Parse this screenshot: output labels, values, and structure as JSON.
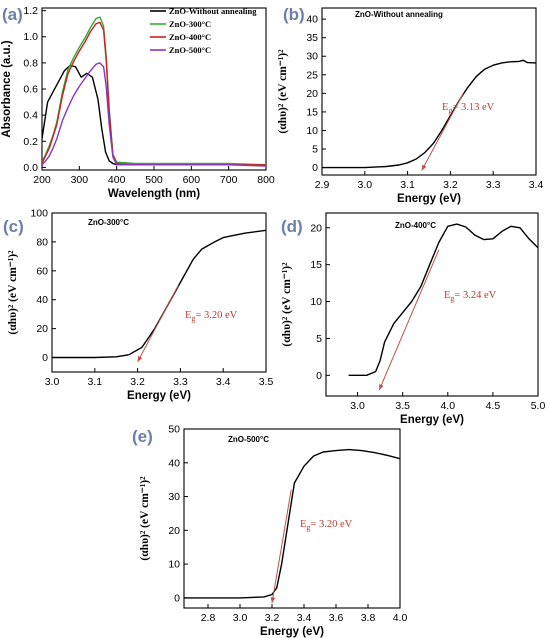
{
  "chart_data": [
    {
      "id": "a",
      "panel_label": "(a)",
      "type": "line",
      "title": "",
      "xlabel": "Wavelength (nm)",
      "ylabel": "Absorbance (a.u.)",
      "xlim": [
        200,
        800
      ],
      "ylim": [
        -0.02,
        1.22
      ],
      "xticks": [
        200,
        300,
        400,
        500,
        600,
        700,
        800
      ],
      "yticks": [
        0.0,
        0.2,
        0.4,
        0.6,
        0.8,
        1.0,
        1.2
      ],
      "legend": "top-right",
      "series": [
        {
          "name": "ZnO-Without annealing",
          "color": "#000000",
          "x": [
            200,
            215,
            230,
            245,
            260,
            275,
            290,
            305,
            320,
            335,
            350,
            360,
            370,
            380,
            390,
            400,
            450,
            500,
            600,
            700,
            800
          ],
          "y": [
            0.22,
            0.5,
            0.58,
            0.66,
            0.74,
            0.78,
            0.77,
            0.69,
            0.72,
            0.69,
            0.52,
            0.3,
            0.12,
            0.05,
            0.03,
            0.02,
            0.02,
            0.02,
            0.02,
            0.02,
            0.02
          ]
        },
        {
          "name": "ZnO-300°C",
          "color": "#33aa33",
          "x": [
            200,
            210,
            220,
            230,
            240,
            255,
            270,
            285,
            300,
            315,
            330,
            345,
            355,
            365,
            372,
            380,
            390,
            400,
            450,
            500,
            600,
            700,
            800
          ],
          "y": [
            0.04,
            0.1,
            0.17,
            0.25,
            0.35,
            0.58,
            0.75,
            0.84,
            0.92,
            0.99,
            1.07,
            1.14,
            1.15,
            1.08,
            0.85,
            0.45,
            0.1,
            0.04,
            0.03,
            0.03,
            0.03,
            0.03,
            0.02
          ]
        },
        {
          "name": "ZnO-400°C",
          "color": "#cc2222",
          "x": [
            200,
            210,
            220,
            230,
            240,
            255,
            270,
            285,
            300,
            315,
            330,
            345,
            355,
            365,
            372,
            380,
            390,
            400,
            450,
            500,
            600,
            700,
            800
          ],
          "y": [
            0.03,
            0.09,
            0.15,
            0.24,
            0.33,
            0.55,
            0.72,
            0.81,
            0.89,
            0.96,
            1.04,
            1.1,
            1.11,
            1.05,
            0.82,
            0.42,
            0.09,
            0.03,
            0.02,
            0.02,
            0.02,
            0.02,
            0.02
          ]
        },
        {
          "name": "ZnO-500°C",
          "color": "#8833cc",
          "x": [
            200,
            210,
            220,
            230,
            240,
            255,
            270,
            285,
            300,
            315,
            330,
            345,
            355,
            365,
            372,
            380,
            390,
            400,
            450,
            500,
            600,
            700,
            800
          ],
          "y": [
            0.02,
            0.05,
            0.09,
            0.15,
            0.22,
            0.36,
            0.46,
            0.55,
            0.62,
            0.68,
            0.74,
            0.79,
            0.8,
            0.77,
            0.62,
            0.33,
            0.08,
            0.02,
            0.02,
            0.02,
            0.02,
            0.02,
            0.01
          ]
        }
      ]
    },
    {
      "id": "b",
      "panel_label": "(b)",
      "type": "line",
      "title": "ZnO-Without annealing",
      "xlabel": "Energy (eV)",
      "ylabel": "(αhυ)² (eV cm⁻¹)²",
      "xlim": [
        2.9,
        3.4
      ],
      "ylim": [
        -2,
        43
      ],
      "xticks": [
        2.9,
        3.0,
        3.1,
        3.2,
        3.3,
        3.4
      ],
      "yticks": [
        0,
        5,
        10,
        15,
        20,
        25,
        30,
        35,
        40
      ],
      "series": [
        {
          "name": "",
          "color": "#000000",
          "x": [
            2.9,
            3.0,
            3.05,
            3.08,
            3.1,
            3.12,
            3.14,
            3.16,
            3.18,
            3.2,
            3.22,
            3.24,
            3.26,
            3.28,
            3.3,
            3.32,
            3.34,
            3.36,
            3.37,
            3.38,
            3.4
          ],
          "y": [
            0,
            0,
            0.3,
            0.7,
            1.3,
            2.3,
            4.0,
            6.5,
            10,
            14,
            18,
            21.5,
            24.5,
            26.5,
            27.6,
            28.2,
            28.5,
            28.6,
            28.9,
            28.3,
            28.2
          ]
        },
        {
          "name": "",
          "color": "#c0504d",
          "x": [
            3.133,
            3.23
          ],
          "y": [
            -0.8,
            20
          ]
        }
      ],
      "annotation": {
        "prefix": "E",
        "sub": "g",
        "text": "= 3.13 eV"
      }
    },
    {
      "id": "c",
      "panel_label": "(c)",
      "type": "line",
      "title": "ZnO-300°C",
      "xlabel": "Energy (eV)",
      "ylabel": "(αhυ)² (eV cm⁻¹)²",
      "xlim": [
        3.0,
        3.5
      ],
      "ylim": [
        -10,
        100
      ],
      "xticks": [
        3.0,
        3.1,
        3.2,
        3.3,
        3.4,
        3.5
      ],
      "yticks": [
        0,
        20,
        40,
        60,
        80,
        100
      ],
      "series": [
        {
          "name": "",
          "color": "#000000",
          "x": [
            3.0,
            3.1,
            3.15,
            3.18,
            3.21,
            3.24,
            3.27,
            3.3,
            3.33,
            3.35,
            3.38,
            3.4,
            3.45,
            3.5
          ],
          "y": [
            0,
            0,
            0.5,
            2,
            7,
            20,
            36,
            52,
            68,
            75,
            80,
            83,
            86,
            88
          ]
        },
        {
          "name": "",
          "color": "#c0504d",
          "x": [
            3.2,
            3.295
          ],
          "y": [
            -3,
            50
          ]
        }
      ],
      "annotation": {
        "prefix": "E",
        "sub": "g",
        "text": "= 3.20 eV"
      }
    },
    {
      "id": "d",
      "panel_label": "(d)",
      "type": "line",
      "title": "ZnO-400°C",
      "xlabel": "Energy (eV)",
      "ylabel": "(αhυ)² (eV cm⁻¹)²",
      "xlim": [
        2.65,
        5.0
      ],
      "ylim": [
        -2.8,
        22
      ],
      "xticks": [
        3.0,
        3.5,
        4.0,
        4.5,
        5.0
      ],
      "yticks": [
        0,
        5,
        10,
        15,
        20
      ],
      "series": [
        {
          "name": "",
          "color": "#000000",
          "x": [
            2.9,
            3.0,
            3.1,
            3.2,
            3.25,
            3.3,
            3.4,
            3.5,
            3.6,
            3.7,
            3.8,
            3.9,
            4.0,
            4.1,
            4.2,
            4.3,
            4.4,
            4.5,
            4.6,
            4.7,
            4.8,
            4.9,
            5.0
          ],
          "y": [
            0,
            0,
            0,
            0.5,
            2,
            4.5,
            7,
            8.5,
            10,
            12,
            15,
            18,
            20.2,
            20.5,
            20.1,
            19,
            18.4,
            18.5,
            19.5,
            20.2,
            20,
            18.5,
            17.3
          ]
        },
        {
          "name": "",
          "color": "#c0504d",
          "x": [
            3.24,
            3.9
          ],
          "y": [
            -2,
            17
          ]
        }
      ],
      "annotation": {
        "prefix": "E",
        "sub": "g",
        "text": "= 3.24 eV"
      }
    },
    {
      "id": "e",
      "panel_label": "(e)",
      "type": "line",
      "title": "ZnO-500°C",
      "xlabel": "Energy (eV)",
      "ylabel": "(αhυ)² (eV cm⁻¹)²",
      "xlim": [
        2.65,
        4.0
      ],
      "ylim": [
        -3,
        50
      ],
      "xticks": [
        2.8,
        3.0,
        3.2,
        3.4,
        3.6,
        3.8,
        4.0
      ],
      "yticks": [
        0,
        10,
        20,
        30,
        40,
        50
      ],
      "series": [
        {
          "name": "",
          "color": "#000000",
          "x": [
            2.65,
            3.0,
            3.15,
            3.2,
            3.23,
            3.26,
            3.3,
            3.34,
            3.4,
            3.46,
            3.52,
            3.6,
            3.68,
            3.76,
            3.84,
            3.92,
            4.0
          ],
          "y": [
            0,
            0,
            0.3,
            1,
            3,
            10,
            22,
            34,
            39,
            42,
            43.2,
            43.6,
            43.9,
            43.6,
            43,
            42.2,
            41.2
          ]
        },
        {
          "name": "",
          "color": "#c0504d",
          "x": [
            3.2,
            3.32
          ],
          "y": [
            -1.5,
            32
          ]
        }
      ],
      "annotation": {
        "prefix": "E",
        "sub": "g",
        "text": "= 3.20 eV"
      }
    }
  ]
}
